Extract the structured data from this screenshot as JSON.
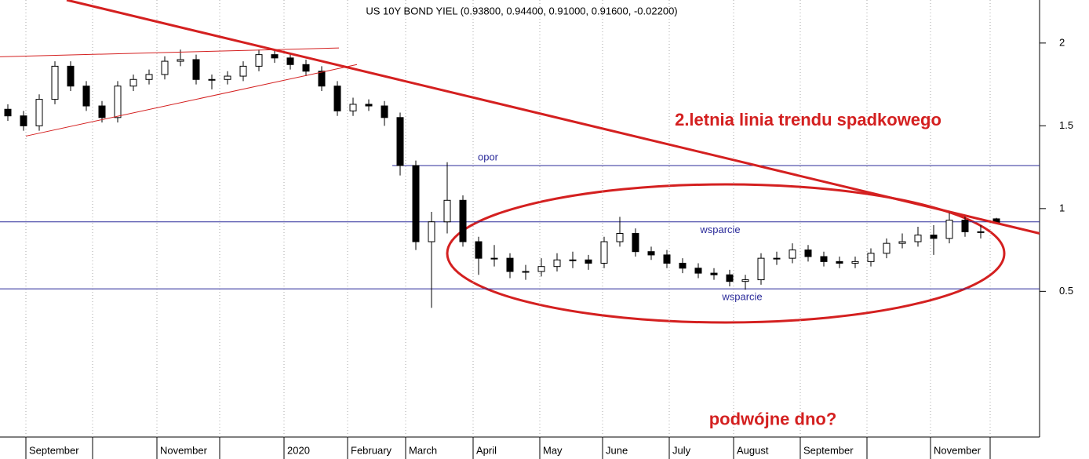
{
  "chart_data": {
    "type": "candlestick",
    "title": "US 10Y BOND YIEL (0.93800, 0.94400, 0.91000, 0.91600, -0.02200)",
    "xlim": [
      0,
      331.25
    ],
    "ylim": [
      -0.38,
      2.26
    ],
    "yticks": [
      0.5,
      1.0,
      1.5,
      2.0
    ],
    "xticks": [
      {
        "value": 8.25,
        "label": "September"
      },
      {
        "value": 29.5,
        "label": null
      },
      {
        "value": 50,
        "label": "November"
      },
      {
        "value": 70,
        "label": null
      },
      {
        "value": 90.5,
        "label": "2020"
      },
      {
        "value": 110.75,
        "label": "February"
      },
      {
        "value": 129.25,
        "label": "March"
      },
      {
        "value": 150.75,
        "label": "April"
      },
      {
        "value": 172,
        "label": "May"
      },
      {
        "value": 192,
        "label": "June"
      },
      {
        "value": 213.25,
        "label": "July"
      },
      {
        "value": 233.75,
        "label": "August"
      },
      {
        "value": 255,
        "label": "September"
      },
      {
        "value": 276.25,
        "label": null
      },
      {
        "value": 296.5,
        "label": "November"
      },
      {
        "value": 315.5,
        "label": null
      }
    ],
    "x": [
      2.5,
      7.5,
      12.5,
      17.5,
      22.5,
      27.5,
      32.5,
      37.5,
      42.5,
      47.5,
      52.5,
      57.5,
      62.5,
      67.5,
      72.5,
      77.5,
      82.5,
      87.5,
      92.5,
      97.5,
      102.5,
      107.5,
      112.5,
      117.5,
      122.5,
      127.5,
      132.5,
      137.5,
      142.5,
      147.5,
      152.5,
      157.5,
      162.5,
      167.5,
      172.5,
      177.5,
      182.5,
      187.5,
      192.5,
      197.5,
      202.5,
      207.5,
      212.5,
      217.5,
      222.5,
      227.5,
      232.5,
      237.5,
      242.5,
      247.5,
      252.5,
      257.5,
      262.5,
      267.5,
      272.5,
      277.5,
      282.5,
      287.5,
      292.5,
      297.5,
      302.5,
      307.5,
      312.5,
      317.5
    ],
    "open": [
      1.6,
      1.56,
      1.5,
      1.66,
      1.86,
      1.74,
      1.62,
      1.55,
      1.74,
      1.78,
      1.81,
      1.89,
      1.9,
      1.78,
      1.78,
      1.8,
      1.86,
      1.93,
      1.91,
      1.87,
      1.83,
      1.74,
      1.59,
      1.63,
      1.62,
      1.55,
      1.26,
      0.8,
      0.92,
      1.05,
      0.8,
      0.7,
      0.7,
      0.62,
      0.62,
      0.65,
      0.69,
      0.69,
      0.67,
      0.8,
      0.85,
      0.74,
      0.72,
      0.67,
      0.64,
      0.61,
      0.6,
      0.56,
      0.57,
      0.7,
      0.7,
      0.75,
      0.71,
      0.68,
      0.67,
      0.68,
      0.73,
      0.79,
      0.8,
      0.84,
      0.82,
      0.93,
      0.86,
      0.938
    ],
    "high": [
      1.63,
      1.59,
      1.69,
      1.89,
      1.89,
      1.77,
      1.65,
      1.77,
      1.81,
      1.84,
      1.92,
      1.96,
      1.93,
      1.81,
      1.83,
      1.89,
      1.96,
      1.96,
      1.94,
      1.9,
      1.86,
      1.77,
      1.67,
      1.66,
      1.65,
      1.58,
      1.29,
      0.98,
      1.28,
      1.08,
      0.83,
      0.78,
      0.73,
      0.66,
      0.7,
      0.73,
      0.74,
      0.72,
      0.83,
      0.95,
      0.88,
      0.77,
      0.75,
      0.7,
      0.67,
      0.64,
      0.63,
      0.6,
      0.73,
      0.74,
      0.79,
      0.78,
      0.74,
      0.71,
      0.71,
      0.76,
      0.82,
      0.85,
      0.89,
      0.9,
      0.98,
      0.96,
      0.9,
      0.944
    ],
    "low": [
      1.53,
      1.47,
      1.47,
      1.63,
      1.71,
      1.59,
      1.52,
      1.52,
      1.71,
      1.75,
      1.78,
      1.86,
      1.75,
      1.72,
      1.75,
      1.77,
      1.83,
      1.88,
      1.84,
      1.8,
      1.71,
      1.56,
      1.56,
      1.59,
      1.5,
      1.2,
      0.75,
      0.4,
      0.85,
      0.77,
      0.6,
      0.65,
      0.58,
      0.57,
      0.59,
      0.62,
      0.64,
      0.63,
      0.64,
      0.77,
      0.71,
      0.69,
      0.64,
      0.61,
      0.58,
      0.57,
      0.53,
      0.51,
      0.54,
      0.66,
      0.67,
      0.68,
      0.65,
      0.64,
      0.64,
      0.65,
      0.7,
      0.76,
      0.77,
      0.72,
      0.79,
      0.83,
      0.82,
      0.91
    ],
    "close": [
      1.56,
      1.5,
      1.66,
      1.86,
      1.74,
      1.62,
      1.55,
      1.74,
      1.78,
      1.81,
      1.89,
      1.9,
      1.78,
      1.78,
      1.8,
      1.86,
      1.93,
      1.91,
      1.87,
      1.83,
      1.74,
      1.59,
      1.63,
      1.62,
      1.55,
      1.26,
      0.8,
      0.92,
      1.05,
      0.8,
      0.7,
      0.7,
      0.62,
      0.62,
      0.65,
      0.69,
      0.69,
      0.67,
      0.8,
      0.85,
      0.74,
      0.72,
      0.67,
      0.64,
      0.61,
      0.6,
      0.56,
      0.57,
      0.7,
      0.7,
      0.75,
      0.71,
      0.68,
      0.67,
      0.68,
      0.73,
      0.79,
      0.8,
      0.84,
      0.82,
      0.93,
      0.86,
      0.86,
      0.916
    ],
    "levels": [
      {
        "value": 1.26,
        "label": "opor",
        "from": 125,
        "label_x": 155.5,
        "label_side": "above"
      },
      {
        "value": 0.92,
        "label": "wsparcie",
        "from": 0,
        "label_x": 229.5,
        "label_side": "below"
      },
      {
        "value": 0.515,
        "label": "wsparcie",
        "from": 0,
        "label_x": 236.5,
        "label_side": "below"
      }
    ],
    "level_color": "#2b2b9a",
    "trendlines": [
      {
        "points": [
          [
            21.25,
            2.26
          ],
          [
            331.25,
            0.85
          ]
        ],
        "color": "#d42020",
        "width": 3
      },
      {
        "points": [
          [
            0,
            1.917
          ],
          [
            108,
            1.97
          ]
        ],
        "color": "#d42020",
        "width": 1
      },
      {
        "points": [
          [
            8.25,
            1.438
          ],
          [
            113.75,
            1.87
          ]
        ],
        "color": "#d42020",
        "width": 1
      }
    ],
    "annotations": [
      {
        "text": "2.letnia linia trendu spadkowego",
        "x": 257.5,
        "y": 1.53
      },
      {
        "text": "podwójne dno?",
        "x": 246.25,
        "y": -0.28
      }
    ],
    "annotation_color": "#d42020"
  }
}
